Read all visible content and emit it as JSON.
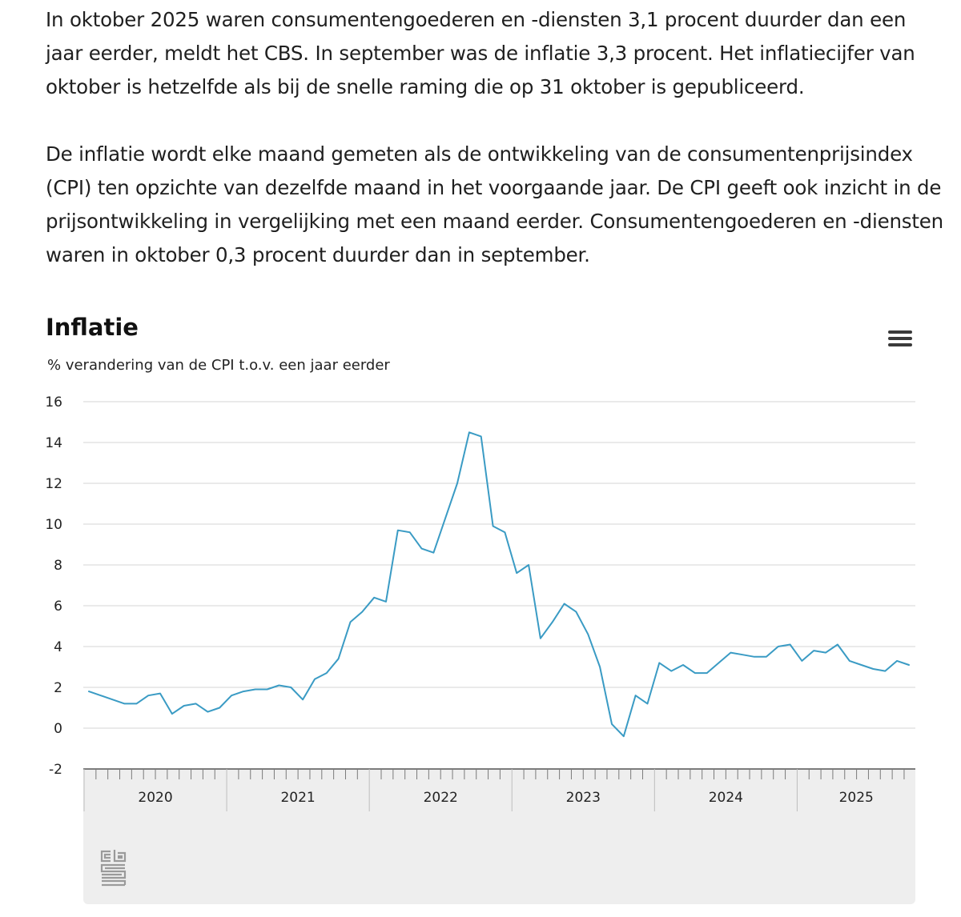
{
  "intro": {
    "paragraph1": "In oktober 2025 waren consumentengoederen en -diensten 3,1 procent duurder dan een jaar eerder, meldt het CBS. In september was de inflatie 3,3 procent. Het inflatiecijfer van oktober is hetzelfde als bij de snelle raming die op 31 oktober is gepubliceerd.",
    "paragraph2": "De inflatie wordt elke maand gemeten als de ontwikkeling van de consumentenprijsindex (CPI) ten opzichte van dezelfde maand in het voorgaande jaar. De CPI geeft ook inzicht in de prijsontwikkeling in vergelijking met een maand eerder. Consumentengoederen en -diensten waren in oktober 0,3 procent duurder dan in september."
  },
  "colors": {
    "line": "#3a9bc4",
    "grid": "#d6d6d6",
    "navigator": "#eeeeee"
  },
  "chart_data": {
    "type": "line",
    "title": "Inflatie",
    "subtitle": "% verandering van de CPI t.o.v. een jaar eerder",
    "ylim": [
      -2,
      16
    ],
    "yticks": [
      -2,
      0,
      2,
      4,
      6,
      8,
      10,
      12,
      14,
      16
    ],
    "grid": true,
    "legend": "none",
    "x_start": "2020-01",
    "years": [
      "2020",
      "2021",
      "2022",
      "2023",
      "2024",
      "2025"
    ],
    "series": [
      {
        "values": [
          1.8,
          1.6,
          1.4,
          1.2,
          1.2,
          1.6,
          1.7,
          0.7,
          1.1,
          1.2,
          0.8,
          1.0,
          1.6,
          1.8,
          1.9,
          1.9,
          2.1,
          2.0,
          1.4,
          2.4,
          2.7,
          3.4,
          5.2,
          5.7,
          6.4,
          6.2,
          9.7,
          9.6,
          8.8,
          8.6,
          10.3,
          12.0,
          14.5,
          14.3,
          9.9,
          9.6,
          7.6,
          8.0,
          4.4,
          5.2,
          6.1,
          5.7,
          4.6,
          3.0,
          0.2,
          -0.4,
          1.6,
          1.2,
          3.2,
          2.8,
          3.1,
          2.7,
          2.7,
          3.2,
          3.7,
          3.6,
          3.5,
          3.5,
          4.0,
          4.1,
          3.3,
          3.8,
          3.7,
          4.1,
          3.3,
          3.1,
          2.9,
          2.8,
          3.3,
          3.1
        ]
      }
    ]
  }
}
